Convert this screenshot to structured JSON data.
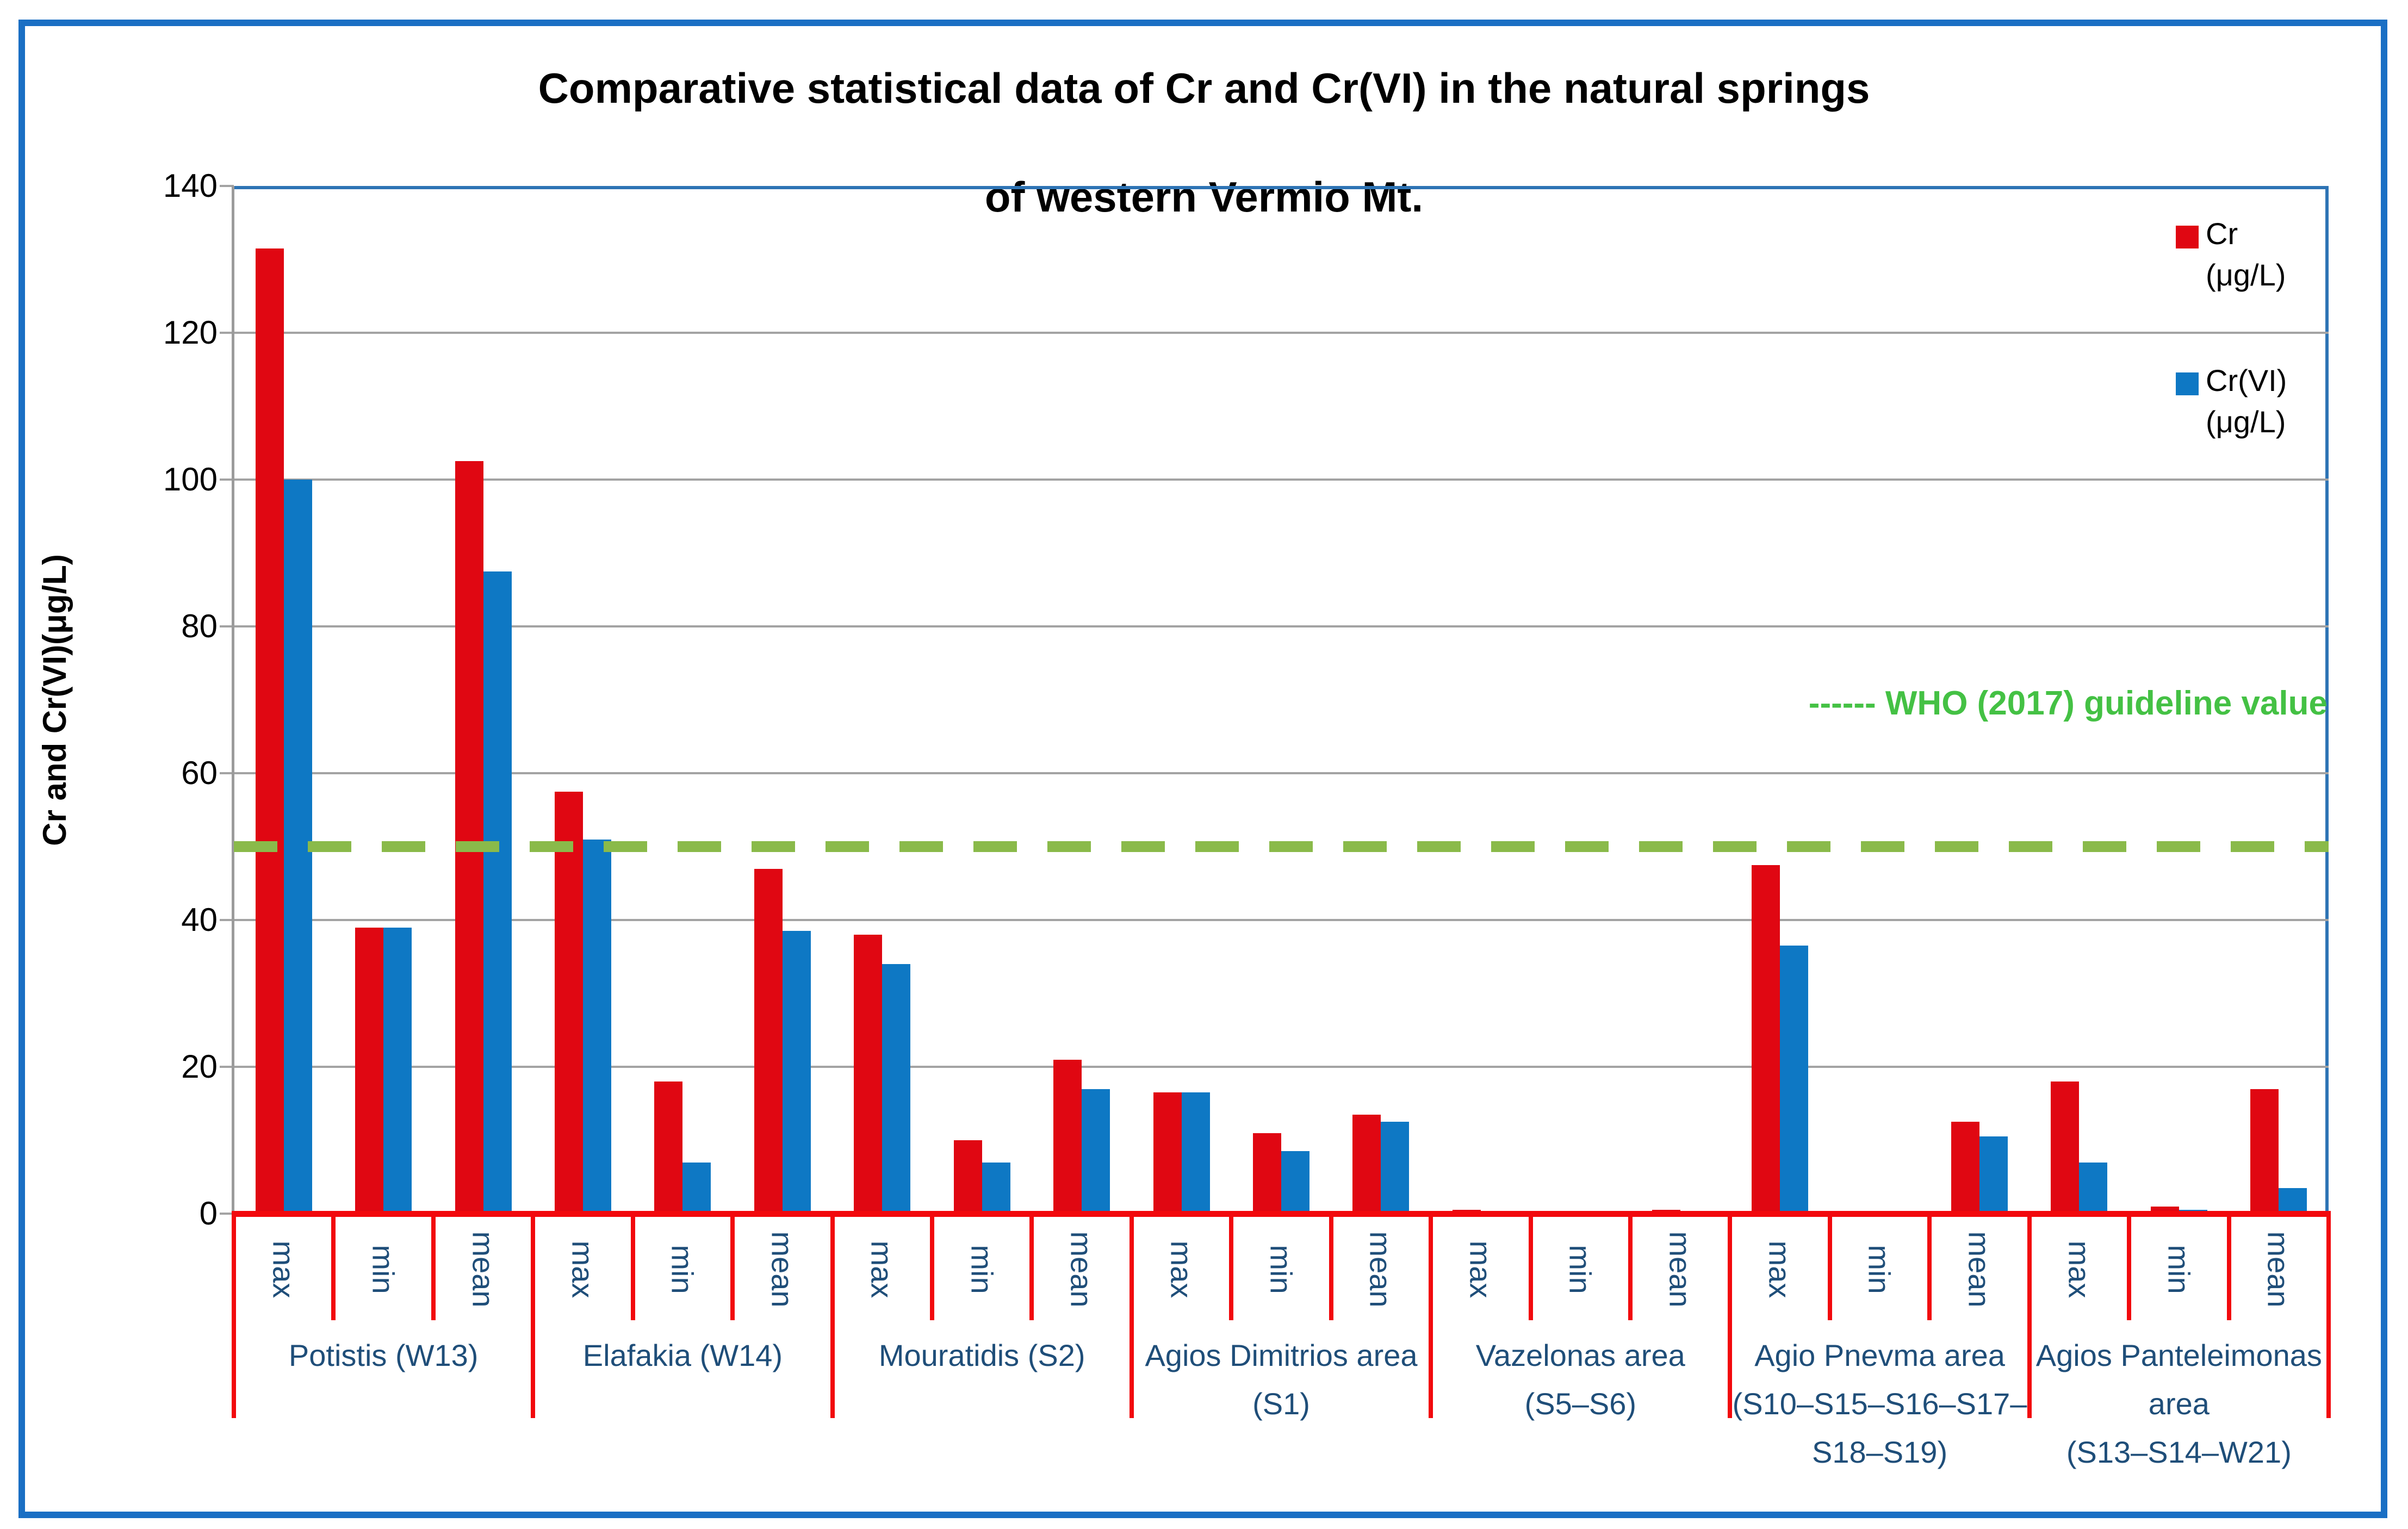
{
  "title": {
    "line1": "Comparative statistical data of Cr and Cr(VI) in the natural springs",
    "line2": "of western Vermio Mt."
  },
  "y_axis": {
    "label": "Cr  and Cr(VI)(μg/L)",
    "tick_labels": [
      "0",
      "20",
      "40",
      "60",
      "80",
      "100",
      "120",
      "140"
    ]
  },
  "legend": {
    "items": [
      {
        "name": "Cr",
        "label": "Cr",
        "unit": "(μg/L)",
        "color": "#e00712"
      },
      {
        "name": "Cr(VI)",
        "label": "Cr(VI)",
        "unit": "(μg/L)",
        "color": "#0e78c4"
      }
    ]
  },
  "annotation": {
    "text": "------ WHO (2017) guideline value",
    "value": 50
  },
  "colors": {
    "cr_bar": "#e00712",
    "cr_vi_bar": "#0e78c4",
    "axis_red": "#f2090d",
    "grid_gray": "#a3a3a3",
    "axis_gray": "#9b9b9b",
    "plot_border_blue": "#2e74b5",
    "outer_border_blue": "#1a6fc4",
    "navy_labels": "#1f4e79",
    "dash_green": "#8aba4a",
    "who_text_green": "#44c144"
  },
  "chart_data": {
    "type": "bar",
    "title": "Comparative statistical data of Cr and Cr(VI) in the natural springs of western Vermio Mt.",
    "xlabel": "",
    "ylabel": "Cr and Cr(VI)(μg/L)",
    "ylim": [
      0,
      140
    ],
    "ytick_step": 20,
    "grid": true,
    "legend_position": "inside-top-right",
    "stats": [
      "max",
      "min",
      "mean"
    ],
    "series": [
      {
        "name": "Cr (μg/L)",
        "color": "#e00712"
      },
      {
        "name": "Cr(VI) (μg/L)",
        "color": "#0e78c4"
      }
    ],
    "reference_line": {
      "label": "WHO (2017) guideline value",
      "value": 50
    },
    "groups": [
      {
        "label": "Potistis (W13)",
        "label_lines": [
          "Potistis (W13)"
        ],
        "cr": {
          "max": 131.5,
          "min": 39,
          "mean": 102.5
        },
        "cr_vi": {
          "max": 100,
          "min": 39,
          "mean": 87.5
        }
      },
      {
        "label": "Elafakia (W14)",
        "label_lines": [
          "Elafakia (W14)"
        ],
        "cr": {
          "max": 57.5,
          "min": 18,
          "mean": 47
        },
        "cr_vi": {
          "max": 51,
          "min": 7,
          "mean": 38.5
        }
      },
      {
        "label": "Mouratidis (S2)",
        "label_lines": [
          "Mouratidis (S2)"
        ],
        "cr": {
          "max": 38,
          "min": 10,
          "mean": 21
        },
        "cr_vi": {
          "max": 34,
          "min": 7,
          "mean": 17
        }
      },
      {
        "label": "Agios Dimitrios area (S1)",
        "label_lines": [
          "Agios Dimitrios area",
          "(S1)"
        ],
        "cr": {
          "max": 16.5,
          "min": 11,
          "mean": 13.5
        },
        "cr_vi": {
          "max": 16.5,
          "min": 8.5,
          "mean": 12.5
        }
      },
      {
        "label": "Vazelonas area (S5–S6)",
        "label_lines": [
          "Vazelonas area",
          "(S5–S6)"
        ],
        "cr": {
          "max": 0.5,
          "min": 0,
          "mean": 0.5
        },
        "cr_vi": {
          "max": 0,
          "min": 0,
          "mean": 0
        }
      },
      {
        "label": "Agio Pnevma area (S10–S15–S16–S17–S18–S19)",
        "label_lines": [
          "Agio Pnevma area",
          "(S10–S15–S16–S17–",
          "S18–S19)"
        ],
        "cr": {
          "max": 47.5,
          "min": 0,
          "mean": 12.5
        },
        "cr_vi": {
          "max": 36.5,
          "min": 0,
          "mean": 10.5
        }
      },
      {
        "label": "Agios Panteleimonas area (S13–S14–W21)",
        "label_lines": [
          "Agios Panteleimonas",
          "area",
          "(S13–S14–W21)"
        ],
        "cr": {
          "max": 18,
          "min": 1,
          "mean": 17
        },
        "cr_vi": {
          "max": 7,
          "min": 0.5,
          "mean": 3.5
        }
      }
    ]
  }
}
